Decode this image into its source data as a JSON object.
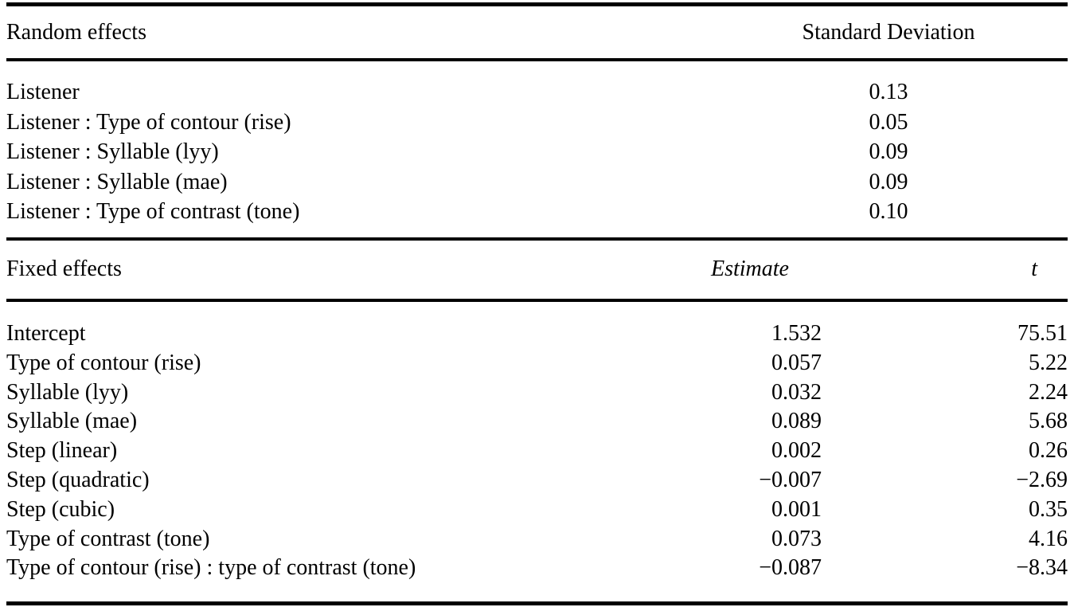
{
  "table": {
    "colors": {
      "text": "#000000",
      "background": "#ffffff"
    },
    "random_section": {
      "header": {
        "label": "Random effects",
        "value_col": "Standard Deviation"
      },
      "rows": [
        {
          "label": "Listener",
          "sd": "0.13"
        },
        {
          "label": "Listener : Type of contour (rise)",
          "sd": "0.05"
        },
        {
          "label": "Listener : Syllable (lyy)",
          "sd": "0.09"
        },
        {
          "label": "Listener : Syllable (mae)",
          "sd": "0.09"
        },
        {
          "label": "Listener : Type of contrast (tone)",
          "sd": "0.10"
        }
      ]
    },
    "fixed_section": {
      "header": {
        "label": "Fixed effects",
        "estimate_col": "Estimate",
        "t_col": "t"
      },
      "rows": [
        {
          "label": "Intercept",
          "estimate": "1.532",
          "t": "75.51"
        },
        {
          "label": "Type of contour (rise)",
          "estimate": "0.057",
          "t": "5.22"
        },
        {
          "label": "Syllable (lyy)",
          "estimate": "0.032",
          "t": "2.24"
        },
        {
          "label": "Syllable (mae)",
          "estimate": "0.089",
          "t": "5.68"
        },
        {
          "label": "Step (linear)",
          "estimate": "0.002",
          "t": "0.26"
        },
        {
          "label": "Step (quadratic)",
          "estimate": "−0.007",
          "t": "−2.69"
        },
        {
          "label": "Step (cubic)",
          "estimate": "0.001",
          "t": "0.35"
        },
        {
          "label": "Type of contrast (tone)",
          "estimate": "0.073",
          "t": "4.16"
        },
        {
          "label": "Type of contour (rise) : type of contrast (tone)",
          "estimate": "−0.087",
          "t": "−8.34"
        }
      ]
    }
  }
}
